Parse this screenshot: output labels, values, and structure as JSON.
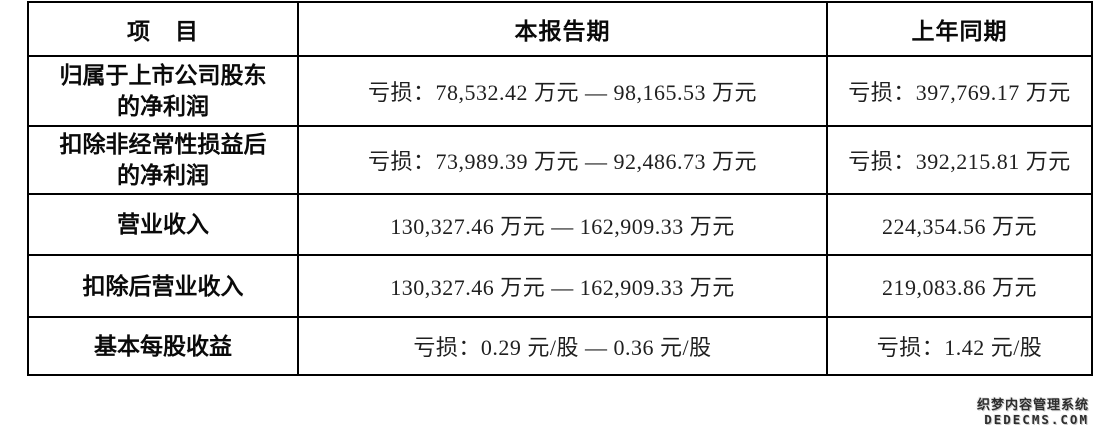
{
  "table": {
    "headers": [
      "项　目",
      "本报告期",
      "上年同期"
    ],
    "rows": [
      {
        "item": "归属于上市公司股东\n的净利润",
        "current": "亏损：78,532.42 万元 — 98,165.53 万元",
        "prior": "亏损：397,769.17 万元"
      },
      {
        "item": "扣除非经常性损益后\n的净利润",
        "current": "亏损：73,989.39 万元 — 92,486.73 万元",
        "prior": "亏损：392,215.81 万元"
      },
      {
        "item": "营业收入",
        "current": "130,327.46 万元 — 162,909.33 万元",
        "prior": "224,354.56 万元"
      },
      {
        "item": "扣除后营业收入",
        "current": "130,327.46 万元 — 162,909.33 万元",
        "prior": "219,083.86 万元"
      },
      {
        "item": "基本每股收益",
        "current": "亏损：0.29 元/股 — 0.36 元/股",
        "prior": "亏损：1.42 元/股"
      }
    ]
  },
  "watermark": {
    "line1": "织梦内容管理系统",
    "line2": "DEDECMS.COM"
  },
  "colors": {
    "border": "#000000",
    "text": "#1f1f1f",
    "watermark": "#2d2d2d"
  }
}
